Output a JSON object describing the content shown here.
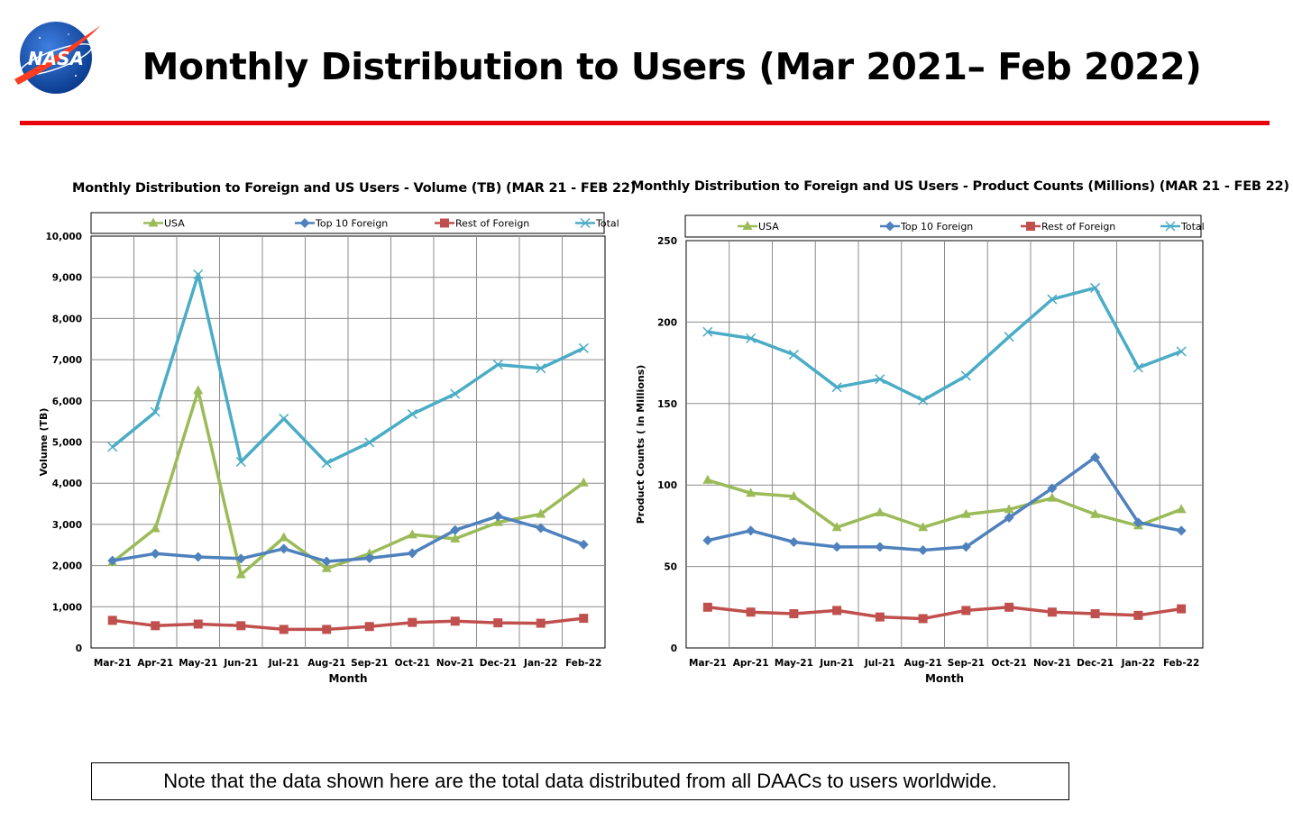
{
  "header": {
    "title": "Monthly Distribution to Users (Mar 2021– Feb 2022)",
    "logo_text": "NASA"
  },
  "colors": {
    "rule": "#e8000d",
    "usa": "#9bbb59",
    "top10": "#4f81bd",
    "rest": "#c0504d",
    "total": "#4bacc6"
  },
  "chart_data": [
    {
      "type": "line",
      "title": "Monthly Distribution to Foreign and US Users - Volume  (TB) (MAR 21 - FEB 22)",
      "xlabel": "Month",
      "ylabel": "Volume (TB)",
      "ylim": [
        0,
        10000
      ],
      "yticks": [
        0,
        1000,
        2000,
        3000,
        4000,
        5000,
        6000,
        7000,
        8000,
        9000,
        10000
      ],
      "ytick_labels": [
        "0",
        "1,000",
        "2,000",
        "3,000",
        "4,000",
        "5,000",
        "6,000",
        "7,000",
        "8,000",
        "9,000",
        "10,000"
      ],
      "grid": true,
      "legend": "top",
      "categories": [
        "Mar-21",
        "Apr-21",
        "May-21",
        "Jun-21",
        "Jul-21",
        "Aug-21",
        "Sep-21",
        "Oct-21",
        "Nov-21",
        "Dec-21",
        "Jan-22",
        "Feb-22"
      ],
      "series": [
        {
          "name": "USA",
          "color": "#9bbb59",
          "marker": "triangle",
          "values": [
            2080,
            2900,
            6250,
            1780,
            2680,
            1930,
            2290,
            2750,
            2650,
            3050,
            3250,
            4010
          ]
        },
        {
          "name": "Top 10 Foreign",
          "color": "#4f81bd",
          "marker": "diamond",
          "values": [
            2120,
            2290,
            2210,
            2170,
            2410,
            2100,
            2180,
            2300,
            2860,
            3200,
            2910,
            2510
          ]
        },
        {
          "name": "Rest of Foreign",
          "color": "#c0504d",
          "marker": "square",
          "values": [
            670,
            540,
            580,
            540,
            450,
            450,
            520,
            620,
            650,
            610,
            600,
            720
          ]
        },
        {
          "name": "Total",
          "color": "#4bacc6",
          "marker": "x",
          "values": [
            4880,
            5730,
            9070,
            4520,
            5570,
            4490,
            4990,
            5680,
            6170,
            6880,
            6790,
            7280
          ]
        }
      ]
    },
    {
      "type": "line",
      "title": "Monthly Distribution to Foreign and US Users - Product Counts (Millions) (MAR 21 - FEB 22)",
      "xlabel": "Month",
      "ylabel": "Product Counts ( in Millions)",
      "ylim": [
        0,
        250
      ],
      "yticks": [
        0,
        50,
        100,
        150,
        200,
        250
      ],
      "ytick_labels": [
        "0",
        "50",
        "100",
        "150",
        "200",
        "250"
      ],
      "grid": true,
      "legend": "top",
      "categories": [
        "Mar-21",
        "Apr-21",
        "May-21",
        "Jun-21",
        "Jul-21",
        "Aug-21",
        "Sep-21",
        "Oct-21",
        "Nov-21",
        "Dec-21",
        "Jan-22",
        "Feb-22"
      ],
      "series": [
        {
          "name": "USA",
          "color": "#9bbb59",
          "marker": "triangle",
          "values": [
            103,
            95,
            93,
            74,
            83,
            74,
            82,
            85,
            92,
            82,
            75,
            85
          ]
        },
        {
          "name": "Top 10 Foreign",
          "color": "#4f81bd",
          "marker": "diamond",
          "values": [
            66,
            72,
            65,
            62,
            62,
            60,
            62,
            80,
            98,
            117,
            77,
            72
          ]
        },
        {
          "name": "Rest of Foreign",
          "color": "#c0504d",
          "marker": "square",
          "values": [
            25,
            22,
            21,
            23,
            19,
            18,
            23,
            25,
            22,
            21,
            20,
            24
          ]
        },
        {
          "name": "Total",
          "color": "#4bacc6",
          "marker": "x",
          "values": [
            194,
            190,
            180,
            160,
            165,
            152,
            167,
            191,
            214,
            221,
            172,
            182
          ]
        }
      ]
    }
  ],
  "note": "Note that the data shown here are the total data distributed from all DAACs to users worldwide."
}
